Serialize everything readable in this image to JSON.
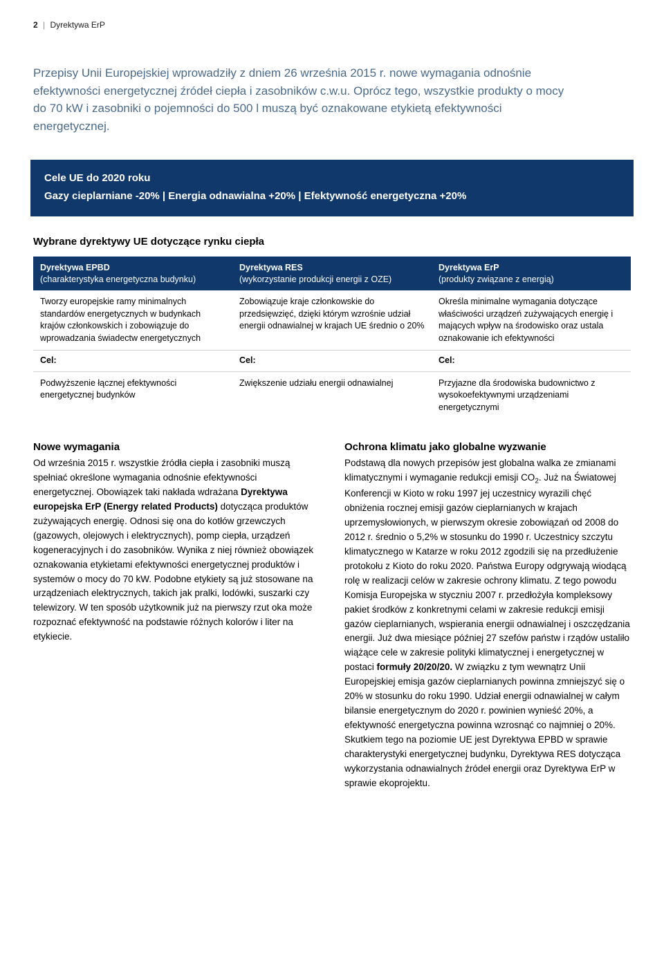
{
  "header": {
    "page_number": "2",
    "doc_title": "Dyrektywa ErP"
  },
  "intro": "Przepisy Unii Europejskiej wprowadziły z dniem 26 września 2015 r. nowe wymagania odnośnie efektywności energetycznej źródeł ciepła i zasobników c.w.u. Oprócz tego, wszystkie produkty o mocy do 70 kW i zasobniki o pojemności do 500 l muszą być oznakowane etykietą efektywności energetycznej.",
  "banner": {
    "title": "Cele UE do 2020 roku",
    "sub": "Gazy cieplarniane -20% | Energia odnawialna +20% | Efektywność energetyczna +20%"
  },
  "directives_heading": "Wybrane dyrektywy UE dotyczące rynku ciepła",
  "dir_table": {
    "cols": [
      {
        "title": "Dyrektywa EPBD",
        "sub": "(charakterystyka energetyczna budynku)"
      },
      {
        "title": "Dyrektywa RES",
        "sub": "(wykorzystanie produkcji energii z OZE)"
      },
      {
        "title": "Dyrektywa ErP",
        "sub": "(produkty związane z energią)"
      }
    ],
    "desc": [
      "Tworzy europejskie ramy minimalnych standardów energetycznych w budynkach krajów członkowskich i zobowiązuje do wprowadzania świadectw energetycznych",
      "Zobowiązuje kraje członkowskie do przedsięwzięć, dzięki którym wzrośnie udział energii odnawialnej w krajach UE średnio o 20%",
      "Określa minimalne wymagania dotyczące właściwości urządzeń zużywających energię i mających wpływ na środowisko oraz ustala oznakowanie ich efektywności"
    ],
    "cel_label": "Cel:",
    "goals": [
      "Podwyższenie łącznej efektywności energetycznej budynków",
      "Zwiększenie udziału energii odnawialnej",
      "Przyjazne dla środowiska budownictwo z wysokoefektywnymi urządzeniami energetycznymi"
    ]
  },
  "left_col": {
    "heading": "Nowe wymagania",
    "body_1": "Od września 2015 r. wszystkie źródła ciepła i zasobniki muszą spełniać określone wymagania odnośnie efektywności energetycznej. Obowiązek taki nakłada wdrażana ",
    "bold_1": "Dyrektywa europejska ErP (Energy related Products)",
    "body_2": " dotycząca produktów zużywających energię. Odnosi się ona do kotłów grzewczych (gazowych, olejowych i elektrycznych), pomp ciepła, urządzeń kogeneracyjnych i do zasobników. Wynika z niej również obowiązek oznakowania etykietami efektywności energetycznej produktów i systemów o mocy do 70 kW. Podobne etykiety są już stosowane na urządzeniach elektrycznych, takich jak pralki, lodówki, suszarki czy telewizory. W ten sposób użytkownik już na pierwszy rzut oka może rozpoznać efektywność na podstawie różnych kolorów i liter na etykiecie."
  },
  "right_col": {
    "heading": "Ochrona klimatu jako globalne wyzwanie",
    "body_1": "Podstawą dla nowych przepisów jest globalna walka ze zmianami klimatycznymi i wymaganie redukcji emisji CO",
    "co2_sub": "2",
    "body_2": ". Już na Światowej Konferencji w Kioto w roku 1997 jej uczestnicy wyrazili chęć obniżenia rocznej emisji gazów cieplarnianych w krajach uprzemysłowionych, w pierwszym okresie zobowiązań od 2008 do 2012 r. średnio o 5,2% w stosunku do 1990 r. Uczestnicy szczytu klimatycznego w Katarze w roku 2012 zgodzili się na przedłużenie protokołu z Kioto do roku 2020. Państwa Europy odgrywają wiodącą rolę w realizacji celów w zakresie ochrony klimatu. Z tego powodu Komisja Europejska w styczniu 2007 r. przedłożyła kompleksowy pakiet środków z konkretnymi celami w zakresie redukcji emisji gazów cieplarnianych, wspierania energii odnawialnej i oszczędzania energii. Już dwa miesiące później 27 szefów państw i rządów ustaliło wiążące cele w zakresie polityki klimatycznej i energetycznej w postaci ",
    "bold_1": "formuły 20/20/20.",
    "body_3": " W związku z tym wewnątrz Unii Europejskiej emisja gazów cieplarnianych powinna zmniejszyć się o 20% w stosunku do roku 1990. Udział energii odnawialnej w całym bilansie energetycznym do 2020 r. powinien wynieść 20%, a efektywność energetyczna powinna wzrosnąć co najmniej o 20%. Skutkiem tego na poziomie UE jest Dyrektywa EPBD w sprawie charakterystyki energetycznej budynku, Dyrektywa RES dotycząca wykorzystania odnawialnych źródeł energii oraz Dyrektywa ErP w sprawie ekoprojektu."
  }
}
